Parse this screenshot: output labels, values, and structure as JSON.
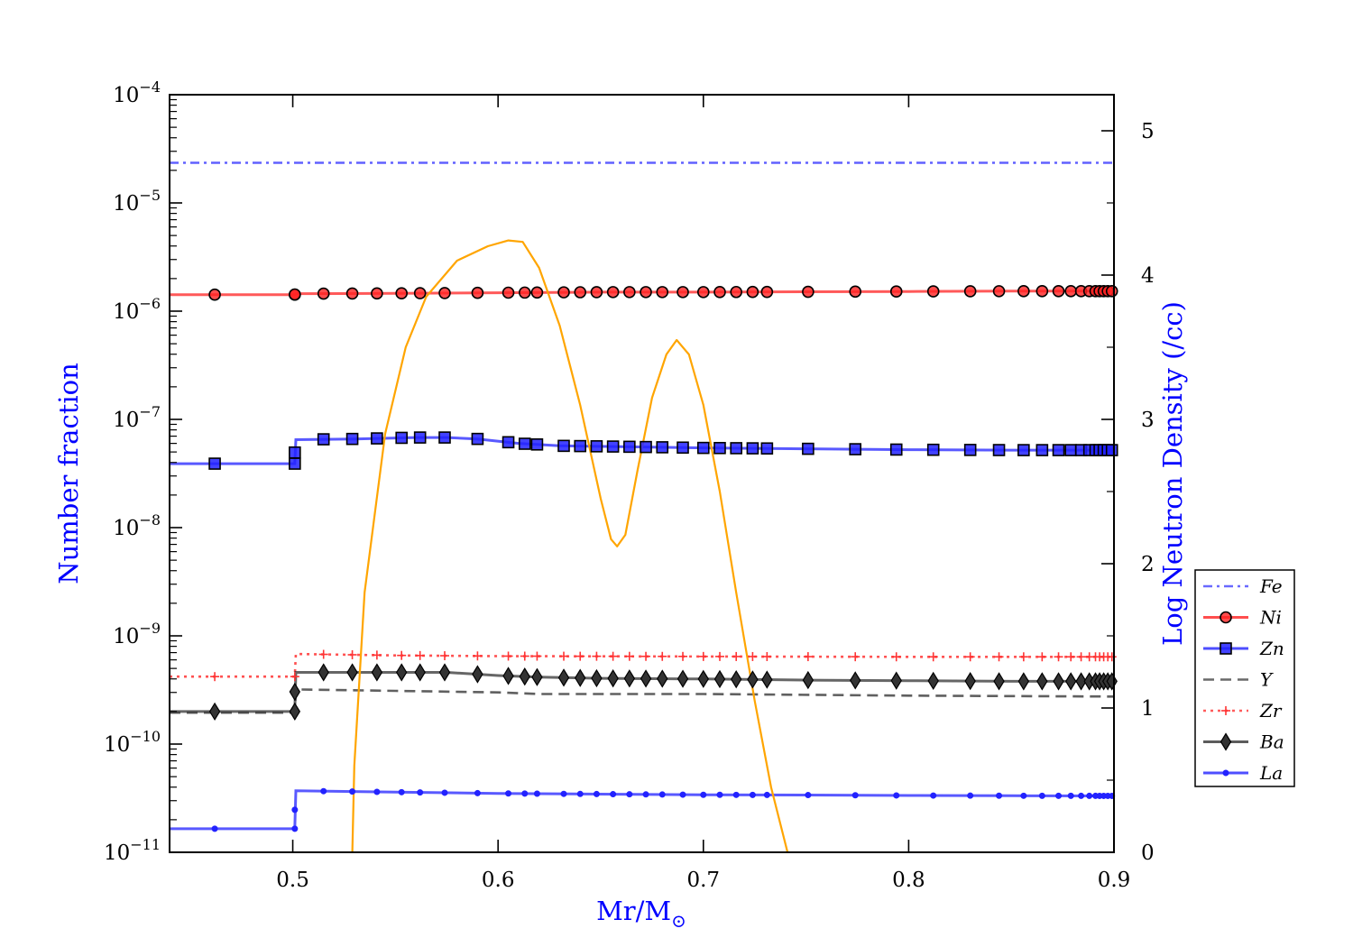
{
  "chart_data": {
    "type": "line",
    "xlabel_main": "Mr/M",
    "xlabel_sub": "⊙",
    "ylabel_left": "Number fraction",
    "ylabel_right": "Log Neutron Density (/cc)",
    "xlim": [
      0.44,
      0.9
    ],
    "ylim_left": [
      1e-11,
      0.0001
    ],
    "yscale_left": "log",
    "ylim_right": [
      0,
      5.25
    ],
    "x_ticks": [
      "0.5",
      "0.6",
      "0.7",
      "0.8",
      "0.9"
    ],
    "x_tick_values": [
      0.5,
      0.6,
      0.7,
      0.8,
      0.9
    ],
    "y_left_ticks": [
      {
        "base": "10",
        "exp": "−4",
        "value": -4
      },
      {
        "base": "10",
        "exp": "−5",
        "value": -5
      },
      {
        "base": "10",
        "exp": "−6",
        "value": -6
      },
      {
        "base": "10",
        "exp": "−7",
        "value": -7
      },
      {
        "base": "10",
        "exp": "−8",
        "value": -8
      },
      {
        "base": "10",
        "exp": "−9",
        "value": -9
      },
      {
        "base": "10",
        "exp": "−10",
        "value": -10
      },
      {
        "base": "10",
        "exp": "−11",
        "value": -11
      }
    ],
    "y_right_ticks": [
      "0",
      "1",
      "2",
      "3",
      "4",
      "5"
    ],
    "y_right_tick_values": [
      0,
      1,
      2,
      3,
      4,
      5
    ],
    "legend_position": "right, outside plot",
    "marker_x": [
      0.462,
      0.501,
      0.515,
      0.529,
      0.541,
      0.553,
      0.562,
      0.574,
      0.59,
      0.605,
      0.613,
      0.619,
      0.632,
      0.64,
      0.648,
      0.656,
      0.664,
      0.672,
      0.68,
      0.69,
      0.7,
      0.708,
      0.716,
      0.724,
      0.731,
      0.751,
      0.774,
      0.794,
      0.812,
      0.83,
      0.844,
      0.856,
      0.865,
      0.873,
      0.879,
      0.884,
      0.888,
      0.891,
      0.893,
      0.895,
      0.897,
      0.899
    ],
    "series": [
      {
        "name": "Fe",
        "color": "#4444ff",
        "style": "dashdot",
        "marker": "none",
        "x": [
          0.44,
          0.9
        ],
        "y": [
          2.35e-05,
          2.35e-05
        ]
      },
      {
        "name": "Ni",
        "color": "#ff2222",
        "style": "solid",
        "marker": "circle",
        "x": [
          0.44,
          0.501,
          0.502,
          0.55,
          0.6,
          0.65,
          0.7,
          0.75,
          0.8,
          0.85,
          0.9
        ],
        "y": [
          1.42e-06,
          1.42e-06,
          1.45e-06,
          1.46e-06,
          1.48e-06,
          1.5e-06,
          1.5e-06,
          1.51e-06,
          1.52e-06,
          1.53e-06,
          1.53e-06
        ]
      },
      {
        "name": "Zn",
        "color": "#2222ff",
        "style": "solid",
        "marker": "square",
        "x": [
          0.44,
          0.501,
          0.5015,
          0.53,
          0.56,
          0.575,
          0.59,
          0.61,
          0.63,
          0.66,
          0.7,
          0.75,
          0.8,
          0.85,
          0.9
        ],
        "y": [
          3.9e-08,
          3.9e-08,
          6.5e-08,
          6.6e-08,
          6.8e-08,
          6.8e-08,
          6.6e-08,
          6e-08,
          5.7e-08,
          5.6e-08,
          5.45e-08,
          5.35e-08,
          5.25e-08,
          5.2e-08,
          5.2e-08
        ]
      },
      {
        "name": "Y",
        "color": "#444444",
        "style": "dashed",
        "marker": "none",
        "x": [
          0.44,
          0.501,
          0.5015,
          0.55,
          0.6,
          0.62,
          0.7,
          0.8,
          0.9
        ],
        "y": [
          1.95e-10,
          1.95e-10,
          3.2e-10,
          3.1e-10,
          3e-10,
          2.9e-10,
          2.9e-10,
          2.8e-10,
          2.75e-10
        ]
      },
      {
        "name": "Zr",
        "color": "#ff3333",
        "style": "dotted",
        "marker": "plus",
        "x": [
          0.44,
          0.501,
          0.5015,
          0.55,
          0.6,
          0.7,
          0.8,
          0.9
        ],
        "y": [
          4.2e-10,
          4.2e-10,
          6.8e-10,
          6.6e-10,
          6.5e-10,
          6.45e-10,
          6.4e-10,
          6.4e-10
        ]
      },
      {
        "name": "Ba",
        "color": "#333333",
        "style": "solid",
        "marker": "diamond",
        "x": [
          0.44,
          0.501,
          0.5015,
          0.53,
          0.575,
          0.6,
          0.62,
          0.65,
          0.7,
          0.75,
          0.8,
          0.85,
          0.9
        ],
        "y": [
          2e-10,
          2e-10,
          4.6e-10,
          4.6e-10,
          4.6e-10,
          4.3e-10,
          4.15e-10,
          4.05e-10,
          4e-10,
          3.9e-10,
          3.85e-10,
          3.8e-10,
          3.8e-10
        ]
      },
      {
        "name": "La",
        "color": "#2222ff",
        "style": "solid",
        "marker": "dot",
        "x": [
          0.44,
          0.501,
          0.5015,
          0.55,
          0.6,
          0.65,
          0.7,
          0.75,
          0.8,
          0.85,
          0.9
        ],
        "y": [
          1.65e-11,
          1.65e-11,
          3.7e-11,
          3.6e-11,
          3.5e-11,
          3.45e-11,
          3.4e-11,
          3.38e-11,
          3.35e-11,
          3.33e-11,
          3.32e-11
        ]
      }
    ],
    "neutron_density": {
      "axis": "right",
      "color": "#ffa500",
      "x": [
        0.529,
        0.53,
        0.535,
        0.545,
        0.555,
        0.565,
        0.58,
        0.595,
        0.605,
        0.612,
        0.62,
        0.63,
        0.64,
        0.65,
        0.655,
        0.658,
        0.662,
        0.668,
        0.675,
        0.682,
        0.687,
        0.693,
        0.7,
        0.708,
        0.716,
        0.725,
        0.733,
        0.741
      ],
      "y": [
        0.0,
        0.6,
        1.8,
        2.9,
        3.5,
        3.85,
        4.1,
        4.2,
        4.24,
        4.23,
        4.05,
        3.65,
        3.1,
        2.45,
        2.17,
        2.12,
        2.2,
        2.65,
        3.15,
        3.45,
        3.55,
        3.45,
        3.1,
        2.5,
        1.8,
        1.05,
        0.45,
        0.0
      ]
    }
  }
}
